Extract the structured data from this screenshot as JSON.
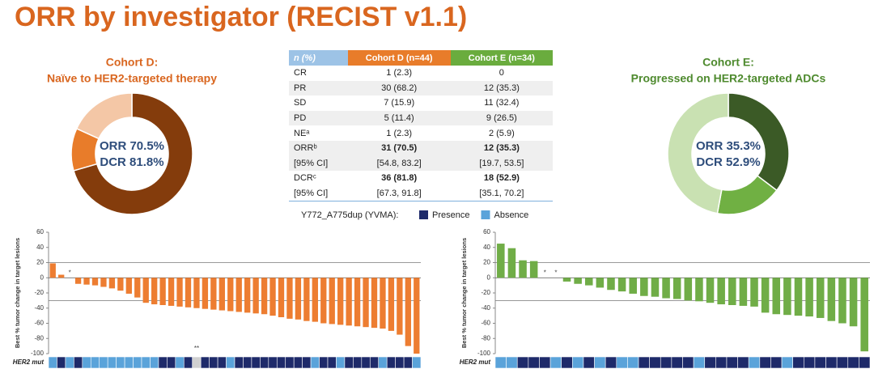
{
  "title": "ORR by investigator (RECIST v1.1)",
  "table": {
    "header": [
      "n (%)",
      "Cohort D (n=44)",
      "Cohort E (n=34)"
    ],
    "rows": [
      [
        "CR",
        "1 (2.3)",
        "0"
      ],
      [
        "PR",
        "30 (68.2)",
        "12 (35.3)"
      ],
      [
        "SD",
        "7 (15.9)",
        "11 (32.4)"
      ],
      [
        "PD",
        "5 (11.4)",
        "9 (26.5)"
      ],
      [
        "NEᵃ",
        "1 (2.3)",
        "2 (5.9)"
      ],
      [
        "ORRᵇ",
        "31 (70.5)",
        "12 (35.3)"
      ],
      [
        "[95% CI]",
        "[54.8, 83.2]",
        "[19.7, 53.5]"
      ],
      [
        "DCRᶜ",
        "36 (81.8)",
        "18 (52.9)"
      ],
      [
        "[95% CI]",
        "[67.3, 91.8]",
        "[35.1, 70.2]"
      ]
    ]
  },
  "legend": {
    "label": "Y772_A775dup (YVMA):",
    "items": [
      {
        "name": "Presence",
        "color": "#1e2a6a"
      },
      {
        "name": "Absence",
        "color": "#5aa3da"
      }
    ]
  },
  "chart_data": [
    {
      "type": "donut",
      "title": "Cohort D:",
      "subtitle": "Naïve to HER2-targeted therapy",
      "title_color": "#d9661f",
      "center_text": [
        "ORR 70.5%",
        "DCR 81.8%"
      ],
      "values": [
        70.5,
        11.3,
        18.2
      ],
      "colors": [
        "#843c0c",
        "#e87c2a",
        "#f4c7a6"
      ]
    },
    {
      "type": "donut",
      "title": "Cohort E:",
      "subtitle": "Progressed on HER2-targeted ADCs",
      "title_color": "#4e8a2e",
      "center_text": [
        "ORR 35.3%",
        "DCR 52.9%"
      ],
      "values": [
        35.3,
        17.6,
        47.1
      ],
      "colors": [
        "#3b5a26",
        "#70b043",
        "#c9e1b2"
      ]
    },
    {
      "type": "bar",
      "color": "#ed7d31",
      "ylabel": "Best % tumor change in target lesions",
      "row_label": "HER2 mut",
      "ylim": [
        -100,
        60
      ],
      "yticks": [
        -100,
        -80,
        -60,
        -40,
        -20,
        0,
        20,
        40,
        60
      ],
      "hlines": [
        20,
        -30
      ],
      "values": [
        19,
        4,
        null,
        -8,
        -9,
        -10,
        -12,
        -14,
        -17,
        -21,
        -26,
        -33,
        -35,
        -36,
        -37,
        -38,
        -39,
        -40,
        -41,
        -42,
        -43,
        -44,
        -45,
        -46,
        -47,
        -48,
        -50,
        -52,
        -54,
        -55,
        -57,
        -58,
        -60,
        -61,
        -62,
        -63,
        -64,
        -65,
        -66,
        -67,
        -70,
        -75,
        -90,
        -100
      ],
      "value_labels": [
        null,
        null,
        "*",
        null,
        null,
        null,
        null,
        null,
        null,
        null,
        null,
        null,
        null,
        null,
        null,
        null,
        null,
        "**",
        null,
        null,
        null,
        null,
        null,
        null,
        null,
        null,
        null,
        null,
        null,
        null,
        null,
        null,
        null,
        null,
        null,
        null,
        null,
        null,
        null,
        null,
        null,
        null,
        null,
        null
      ],
      "her2_mut": [
        0,
        1,
        0,
        1,
        0,
        0,
        0,
        0,
        0,
        0,
        0,
        0,
        0,
        1,
        1,
        0,
        1,
        null,
        1,
        1,
        1,
        0,
        1,
        1,
        1,
        1,
        1,
        1,
        1,
        1,
        1,
        0,
        1,
        1,
        0,
        1,
        1,
        1,
        1,
        0,
        1,
        1,
        1,
        0
      ]
    },
    {
      "type": "bar",
      "color": "#70ad47",
      "ylabel": "Best % tumor change in target lesions",
      "row_label": "HER2 mut",
      "ylim": [
        -100,
        60
      ],
      "yticks": [
        -100,
        -80,
        -60,
        -40,
        -20,
        0,
        20,
        40,
        60
      ],
      "hlines": [
        20,
        -30
      ],
      "values": [
        45,
        39,
        23,
        22,
        null,
        null,
        -5,
        -8,
        -10,
        -13,
        -16,
        -18,
        -21,
        -24,
        -25,
        -27,
        -28,
        -30,
        -31,
        -33,
        -35,
        -36,
        -37,
        -38,
        -46,
        -48,
        -49,
        -50,
        -51,
        -53,
        -57,
        -60,
        -64,
        -97
      ],
      "value_labels": [
        null,
        null,
        null,
        null,
        "*",
        "*",
        null,
        null,
        null,
        null,
        null,
        null,
        null,
        null,
        null,
        null,
        null,
        null,
        null,
        null,
        null,
        null,
        null,
        null,
        null,
        null,
        null,
        null,
        null,
        null,
        null,
        null,
        null,
        null
      ],
      "her2_mut": [
        0,
        0,
        1,
        1,
        1,
        0,
        1,
        0,
        1,
        0,
        1,
        0,
        0,
        1,
        1,
        1,
        1,
        1,
        0,
        1,
        1,
        1,
        1,
        0,
        1,
        1,
        0,
        1,
        1,
        1,
        1,
        1,
        1,
        1
      ]
    }
  ]
}
